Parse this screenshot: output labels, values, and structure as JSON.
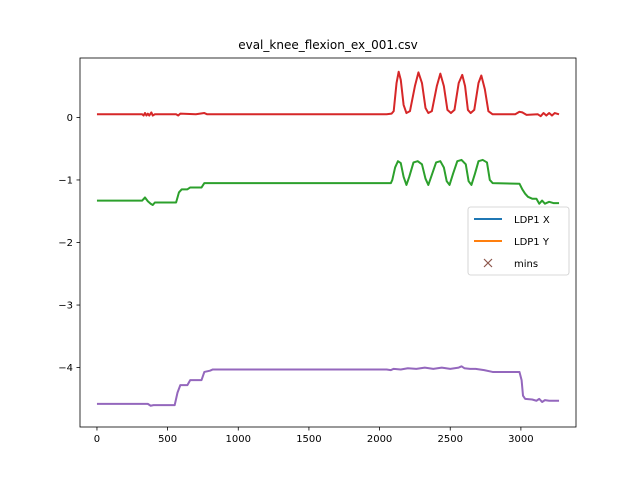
{
  "chart_data": {
    "type": "line",
    "title": "eval_knee_flexion_ex_001.csv",
    "xlabel": "",
    "ylabel": "",
    "xlim": [
      -120,
      3390
    ],
    "ylim": [
      -4.95,
      0.95
    ],
    "xticks": [
      0,
      500,
      1000,
      1500,
      2000,
      2500,
      3000
    ],
    "yticks": [
      0,
      -1,
      -2,
      -3,
      -4
    ],
    "xtick_labels": [
      "0",
      "500",
      "1000",
      "1500",
      "2000",
      "2500",
      "3000"
    ],
    "ytick_labels": [
      "0",
      "−1",
      "−2",
      "−3",
      "−4"
    ],
    "grid": false,
    "legend_placement": "center-right",
    "legend": [
      {
        "label": "LDP1 X",
        "kind": "line",
        "color": "#1f77b4"
      },
      {
        "label": "LDP1 Y",
        "kind": "line",
        "color": "#ff7f0e"
      },
      {
        "label": "mins",
        "kind": "marker-x",
        "color": "#8c564b"
      }
    ],
    "series": [
      {
        "color": "#d62728",
        "points": [
          [
            0,
            0.05
          ],
          [
            320,
            0.05
          ],
          [
            330,
            0.03
          ],
          [
            340,
            0.07
          ],
          [
            350,
            0.03
          ],
          [
            360,
            0.06
          ],
          [
            370,
            0.03
          ],
          [
            385,
            0.08
          ],
          [
            395,
            0.03
          ],
          [
            410,
            0.05
          ],
          [
            560,
            0.05
          ],
          [
            575,
            0.03
          ],
          [
            590,
            0.06
          ],
          [
            700,
            0.05
          ],
          [
            760,
            0.07
          ],
          [
            780,
            0.05
          ],
          [
            2050,
            0.05
          ],
          [
            2085,
            0.06
          ],
          [
            2100,
            0.1
          ],
          [
            2120,
            0.55
          ],
          [
            2135,
            0.73
          ],
          [
            2150,
            0.6
          ],
          [
            2170,
            0.2
          ],
          [
            2190,
            0.07
          ],
          [
            2215,
            0.1
          ],
          [
            2250,
            0.5
          ],
          [
            2275,
            0.72
          ],
          [
            2300,
            0.55
          ],
          [
            2325,
            0.15
          ],
          [
            2345,
            0.07
          ],
          [
            2370,
            0.1
          ],
          [
            2405,
            0.5
          ],
          [
            2430,
            0.7
          ],
          [
            2455,
            0.5
          ],
          [
            2480,
            0.12
          ],
          [
            2505,
            0.07
          ],
          [
            2530,
            0.12
          ],
          [
            2560,
            0.55
          ],
          [
            2585,
            0.68
          ],
          [
            2605,
            0.5
          ],
          [
            2625,
            0.12
          ],
          [
            2645,
            0.07
          ],
          [
            2670,
            0.12
          ],
          [
            2700,
            0.55
          ],
          [
            2720,
            0.67
          ],
          [
            2745,
            0.45
          ],
          [
            2770,
            0.1
          ],
          [
            2800,
            0.05
          ],
          [
            2960,
            0.05
          ],
          [
            2990,
            0.09
          ],
          [
            3010,
            0.08
          ],
          [
            3040,
            0.04
          ],
          [
            3120,
            0.05
          ],
          [
            3140,
            0.02
          ],
          [
            3160,
            0.07
          ],
          [
            3180,
            0.03
          ],
          [
            3200,
            0.07
          ],
          [
            3220,
            0.03
          ],
          [
            3240,
            0.07
          ],
          [
            3270,
            0.05
          ]
        ]
      },
      {
        "color": "#2ca02c",
        "points": [
          [
            0,
            -1.33
          ],
          [
            320,
            -1.33
          ],
          [
            340,
            -1.28
          ],
          [
            360,
            -1.34
          ],
          [
            380,
            -1.38
          ],
          [
            395,
            -1.4
          ],
          [
            410,
            -1.36
          ],
          [
            560,
            -1.36
          ],
          [
            580,
            -1.2
          ],
          [
            600,
            -1.15
          ],
          [
            640,
            -1.15
          ],
          [
            660,
            -1.12
          ],
          [
            740,
            -1.12
          ],
          [
            760,
            -1.05
          ],
          [
            2050,
            -1.05
          ],
          [
            2080,
            -1.05
          ],
          [
            2090,
            -1.0
          ],
          [
            2110,
            -0.8
          ],
          [
            2130,
            -0.7
          ],
          [
            2150,
            -0.73
          ],
          [
            2170,
            -0.95
          ],
          [
            2190,
            -1.08
          ],
          [
            2210,
            -0.95
          ],
          [
            2240,
            -0.72
          ],
          [
            2270,
            -0.7
          ],
          [
            2300,
            -0.75
          ],
          [
            2325,
            -0.98
          ],
          [
            2345,
            -1.08
          ],
          [
            2365,
            -0.95
          ],
          [
            2400,
            -0.72
          ],
          [
            2430,
            -0.7
          ],
          [
            2455,
            -0.8
          ],
          [
            2475,
            -1.02
          ],
          [
            2495,
            -1.08
          ],
          [
            2520,
            -0.9
          ],
          [
            2550,
            -0.7
          ],
          [
            2580,
            -0.68
          ],
          [
            2610,
            -0.75
          ],
          [
            2630,
            -1.02
          ],
          [
            2650,
            -1.08
          ],
          [
            2675,
            -0.9
          ],
          [
            2700,
            -0.7
          ],
          [
            2730,
            -0.68
          ],
          [
            2760,
            -0.72
          ],
          [
            2780,
            -1.0
          ],
          [
            2800,
            -1.05
          ],
          [
            2990,
            -1.06
          ],
          [
            3010,
            -1.15
          ],
          [
            3030,
            -1.22
          ],
          [
            3050,
            -1.27
          ],
          [
            3080,
            -1.3
          ],
          [
            3110,
            -1.3
          ],
          [
            3130,
            -1.38
          ],
          [
            3150,
            -1.33
          ],
          [
            3170,
            -1.38
          ],
          [
            3200,
            -1.35
          ],
          [
            3230,
            -1.37
          ],
          [
            3270,
            -1.37
          ]
        ]
      },
      {
        "color": "#9467bd",
        "points": [
          [
            0,
            -4.58
          ],
          [
            360,
            -4.58
          ],
          [
            380,
            -4.61
          ],
          [
            400,
            -4.6
          ],
          [
            550,
            -4.6
          ],
          [
            570,
            -4.4
          ],
          [
            590,
            -4.28
          ],
          [
            640,
            -4.28
          ],
          [
            660,
            -4.2
          ],
          [
            740,
            -4.2
          ],
          [
            760,
            -4.07
          ],
          [
            800,
            -4.05
          ],
          [
            820,
            -4.03
          ],
          [
            2050,
            -4.03
          ],
          [
            2080,
            -4.04
          ],
          [
            2100,
            -4.02
          ],
          [
            2150,
            -4.03
          ],
          [
            2200,
            -4.01
          ],
          [
            2260,
            -4.02
          ],
          [
            2320,
            -4.0
          ],
          [
            2380,
            -4.02
          ],
          [
            2440,
            -4.0
          ],
          [
            2500,
            -4.02
          ],
          [
            2560,
            -4.0
          ],
          [
            2580,
            -3.98
          ],
          [
            2600,
            -4.01
          ],
          [
            2640,
            -4.02
          ],
          [
            2680,
            -4.02
          ],
          [
            2740,
            -4.04
          ],
          [
            2800,
            -4.07
          ],
          [
            2990,
            -4.07
          ],
          [
            3005,
            -4.2
          ],
          [
            3015,
            -4.45
          ],
          [
            3030,
            -4.5
          ],
          [
            3080,
            -4.51
          ],
          [
            3110,
            -4.53
          ],
          [
            3130,
            -4.5
          ],
          [
            3150,
            -4.55
          ],
          [
            3170,
            -4.52
          ],
          [
            3200,
            -4.53
          ],
          [
            3270,
            -4.53
          ]
        ]
      }
    ]
  }
}
